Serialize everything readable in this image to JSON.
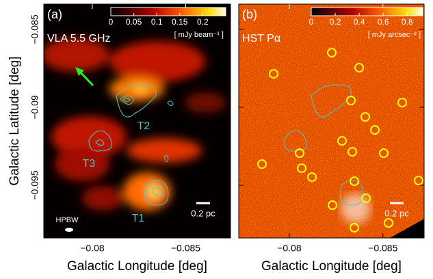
{
  "figure": {
    "y_axis": {
      "label": "Galactic Latitude  [deg]",
      "lim": [
        -0.08338,
        -0.09838
      ],
      "ticks": [
        {
          "value": -0.085,
          "label": "−0.085"
        },
        {
          "value": -0.09,
          "label": "−0.09"
        },
        {
          "value": -0.095,
          "label": "−0.095"
        }
      ]
    }
  },
  "panels": [
    {
      "label": "(a)",
      "title": "VLA  5.5 GHz",
      "colorbar_label": "[ mJy beam⁻¹ ]",
      "colorbar_lim": [
        0,
        0.25
      ],
      "colorbar_ticks": [
        0,
        0.05,
        0.1,
        0.15,
        0.2
      ],
      "x_label": "Galactic Longitude  [deg]",
      "xlim": [
        -0.0774,
        -0.0874
      ],
      "xticks": [
        {
          "value": -0.08,
          "label": "−0.08"
        },
        {
          "value": -0.085,
          "label": "−0.085"
        }
      ],
      "annotations": [
        "T2",
        "T3",
        "T1",
        "HPBW"
      ],
      "scale_bar": "0.2 pc"
    },
    {
      "label": "(b)",
      "title": "HST  Pα",
      "colorbar_label": "[ mJy arcsec⁻² ]",
      "colorbar_lim": [
        0,
        0.93
      ],
      "colorbar_ticks": [
        0,
        0.2,
        0.4,
        0.6,
        0.8
      ],
      "x_label": "Galactic Longitude  [deg]",
      "xlim": [
        -0.0773,
        -0.0872
      ],
      "xticks": [
        {
          "value": -0.08,
          "label": "−0.08"
        },
        {
          "value": -0.085,
          "label": "−0.085"
        }
      ],
      "annotations": [],
      "scale_bar": "0.2 pc"
    }
  ]
}
